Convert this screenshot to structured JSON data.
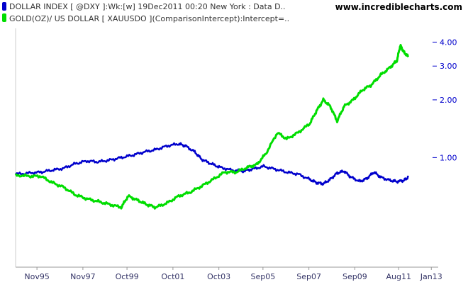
{
  "legend": {
    "site": "www.incrediblecharts.com",
    "items": [
      {
        "label": "DOLLAR INDEX [ @DXY ]:Wk:[w]  19Dec2011 00:20 New York  : Data D..",
        "color": "#0000cc"
      },
      {
        "label": "GOLD(OZ)/ US DOLLAR [ XAUUSDO ](ComparisonIntercept):Intercept=..",
        "color": "#00dd00"
      }
    ]
  },
  "chart_data": {
    "type": "line",
    "y_scale": "log",
    "ylim": [
      0.28,
      4.6
    ],
    "y_ticks": [
      {
        "value": 4.0,
        "label": "4.00"
      },
      {
        "value": 3.0,
        "label": "3.00"
      },
      {
        "value": 2.0,
        "label": "2.00"
      },
      {
        "value": 1.0,
        "label": "1.00"
      }
    ],
    "xlim": [
      1994.9,
      2013.3
    ],
    "x_ticks": [
      {
        "value": 1995.83,
        "label": "Nov95"
      },
      {
        "value": 1997.83,
        "label": "Nov97"
      },
      {
        "value": 1999.75,
        "label": "Oct99"
      },
      {
        "value": 2001.75,
        "label": "Oct01"
      },
      {
        "value": 2003.75,
        "label": "Oct03"
      },
      {
        "value": 2005.67,
        "label": "Sep05"
      },
      {
        "value": 2007.67,
        "label": "Sep07"
      },
      {
        "value": 2009.67,
        "label": "Sep09"
      },
      {
        "value": 2011.58,
        "label": "Aug11"
      },
      {
        "value": 2013.0,
        "label": "Jan13"
      }
    ],
    "grid": false,
    "series": [
      {
        "name": "DOLLAR INDEX [ @DXY ]",
        "color": "#0000cc",
        "points": [
          [
            1994.9,
            0.82
          ],
          [
            1995.5,
            0.83
          ],
          [
            1996.0,
            0.84
          ],
          [
            1996.5,
            0.86
          ],
          [
            1997.0,
            0.88
          ],
          [
            1997.5,
            0.93
          ],
          [
            1998.0,
            0.96
          ],
          [
            1998.5,
            0.95
          ],
          [
            1999.0,
            0.97
          ],
          [
            1999.5,
            1.0
          ],
          [
            2000.0,
            1.03
          ],
          [
            2000.5,
            1.07
          ],
          [
            2001.0,
            1.1
          ],
          [
            2001.5,
            1.15
          ],
          [
            2002.0,
            1.18
          ],
          [
            2002.3,
            1.15
          ],
          [
            2002.7,
            1.07
          ],
          [
            2003.0,
            0.98
          ],
          [
            2003.4,
            0.93
          ],
          [
            2003.8,
            0.89
          ],
          [
            2004.3,
            0.86
          ],
          [
            2004.8,
            0.85
          ],
          [
            2005.2,
            0.87
          ],
          [
            2005.7,
            0.9
          ],
          [
            2006.2,
            0.87
          ],
          [
            2006.7,
            0.84
          ],
          [
            2007.2,
            0.82
          ],
          [
            2007.7,
            0.77
          ],
          [
            2008.0,
            0.74
          ],
          [
            2008.3,
            0.73
          ],
          [
            2008.6,
            0.77
          ],
          [
            2008.9,
            0.83
          ],
          [
            2009.2,
            0.85
          ],
          [
            2009.5,
            0.79
          ],
          [
            2009.9,
            0.75
          ],
          [
            2010.2,
            0.78
          ],
          [
            2010.5,
            0.84
          ],
          [
            2010.8,
            0.79
          ],
          [
            2011.2,
            0.76
          ],
          [
            2011.5,
            0.75
          ],
          [
            2011.8,
            0.76
          ],
          [
            2012.0,
            0.79
          ]
        ]
      },
      {
        "name": "GOLD(OZ)/ US DOLLAR [ XAUUSDO ]",
        "color": "#00dd00",
        "points": [
          [
            1994.9,
            0.81
          ],
          [
            1995.5,
            0.8
          ],
          [
            1996.0,
            0.8
          ],
          [
            1996.5,
            0.74
          ],
          [
            1997.0,
            0.7
          ],
          [
            1997.5,
            0.64
          ],
          [
            1998.0,
            0.61
          ],
          [
            1998.5,
            0.59
          ],
          [
            1999.0,
            0.57
          ],
          [
            1999.5,
            0.55
          ],
          [
            1999.8,
            0.63
          ],
          [
            2000.2,
            0.6
          ],
          [
            2000.6,
            0.57
          ],
          [
            2001.0,
            0.55
          ],
          [
            2001.5,
            0.58
          ],
          [
            2002.0,
            0.63
          ],
          [
            2002.5,
            0.66
          ],
          [
            2003.0,
            0.71
          ],
          [
            2003.5,
            0.77
          ],
          [
            2004.0,
            0.84
          ],
          [
            2004.5,
            0.84
          ],
          [
            2005.0,
            0.89
          ],
          [
            2005.4,
            0.92
          ],
          [
            2005.8,
            1.05
          ],
          [
            2006.3,
            1.35
          ],
          [
            2006.7,
            1.25
          ],
          [
            2007.2,
            1.35
          ],
          [
            2007.7,
            1.5
          ],
          [
            2008.0,
            1.75
          ],
          [
            2008.3,
            2.0
          ],
          [
            2008.6,
            1.85
          ],
          [
            2008.9,
            1.55
          ],
          [
            2009.2,
            1.85
          ],
          [
            2009.6,
            2.0
          ],
          [
            2010.0,
            2.25
          ],
          [
            2010.4,
            2.4
          ],
          [
            2010.8,
            2.7
          ],
          [
            2011.2,
            2.95
          ],
          [
            2011.5,
            3.2
          ],
          [
            2011.65,
            3.85
          ],
          [
            2011.8,
            3.55
          ],
          [
            2012.0,
            3.35
          ]
        ]
      }
    ]
  }
}
